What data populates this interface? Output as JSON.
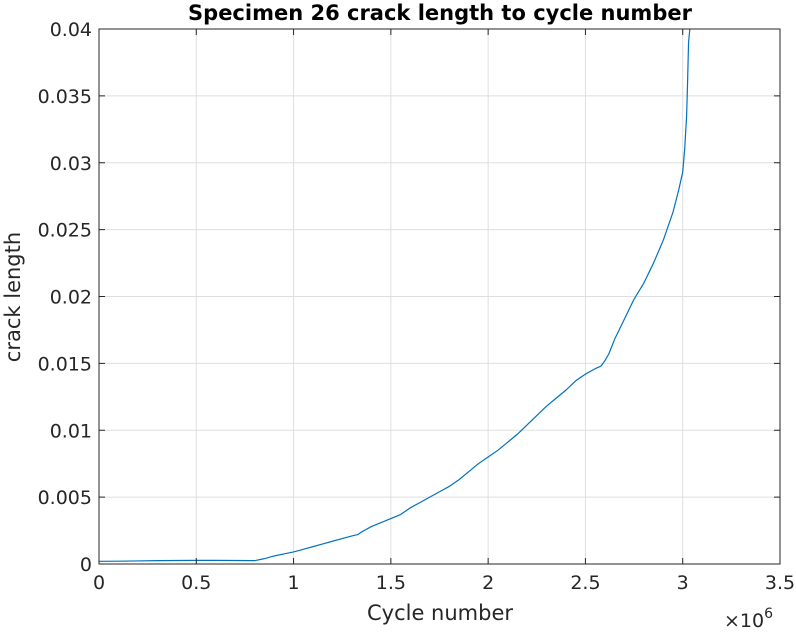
{
  "chart_data": {
    "type": "line",
    "title": "Specimen 26 crack length to cycle number",
    "xlabel": "Cycle number",
    "ylabel": "crack length",
    "x_multiplier_base": "×10",
    "x_multiplier_exponent": "6",
    "xlim": [
      0,
      3.5
    ],
    "ylim": [
      0,
      0.04
    ],
    "x_ticks": [
      {
        "value": 0,
        "label": "0"
      },
      {
        "value": 0.5,
        "label": "0.5"
      },
      {
        "value": 1,
        "label": "1"
      },
      {
        "value": 1.5,
        "label": "1.5"
      },
      {
        "value": 2,
        "label": "2"
      },
      {
        "value": 2.5,
        "label": "2.5"
      },
      {
        "value": 3,
        "label": "3"
      },
      {
        "value": 3.5,
        "label": "3.5"
      }
    ],
    "y_ticks": [
      {
        "value": 0,
        "label": "0"
      },
      {
        "value": 0.005,
        "label": "0.005"
      },
      {
        "value": 0.01,
        "label": "0.01"
      },
      {
        "value": 0.015,
        "label": "0.015"
      },
      {
        "value": 0.02,
        "label": "0.02"
      },
      {
        "value": 0.025,
        "label": "0.025"
      },
      {
        "value": 0.03,
        "label": "0.03"
      },
      {
        "value": 0.035,
        "label": "0.035"
      },
      {
        "value": 0.04,
        "label": "0.04"
      }
    ],
    "grid": true,
    "series": [
      {
        "color": "#0072BD",
        "x": [
          0,
          0.1,
          0.2,
          0.3,
          0.4,
          0.5,
          0.6,
          0.7,
          0.8,
          0.85,
          0.9,
          0.95,
          1.0,
          1.05,
          1.1,
          1.15,
          1.2,
          1.25,
          1.3,
          1.33,
          1.35,
          1.4,
          1.45,
          1.5,
          1.55,
          1.6,
          1.65,
          1.7,
          1.75,
          1.8,
          1.85,
          1.9,
          1.95,
          2.0,
          2.05,
          2.1,
          2.15,
          2.2,
          2.25,
          2.3,
          2.35,
          2.4,
          2.45,
          2.5,
          2.55,
          2.58,
          2.6,
          2.62,
          2.65,
          2.7,
          2.75,
          2.8,
          2.85,
          2.9,
          2.95,
          2.98,
          3.0,
          3.01,
          3.02,
          3.025,
          3.03,
          3.04
        ],
        "y": [
          0.0002,
          0.00021,
          0.00023,
          0.00025,
          0.00026,
          0.00027,
          0.00027,
          0.00026,
          0.00025,
          0.0004,
          0.0006,
          0.00075,
          0.0009,
          0.0011,
          0.0013,
          0.0015,
          0.0017,
          0.0019,
          0.0021,
          0.0022,
          0.0024,
          0.0028,
          0.0031,
          0.0034,
          0.0037,
          0.0042,
          0.0046,
          0.005,
          0.0054,
          0.0058,
          0.0063,
          0.0069,
          0.0075,
          0.008,
          0.0085,
          0.0091,
          0.0097,
          0.0104,
          0.0111,
          0.0118,
          0.0124,
          0.013,
          0.0137,
          0.0142,
          0.0146,
          0.0148,
          0.0152,
          0.0157,
          0.0168,
          0.0183,
          0.0198,
          0.021,
          0.0225,
          0.0242,
          0.0263,
          0.028,
          0.0293,
          0.031,
          0.0335,
          0.036,
          0.039,
          0.0405
        ]
      }
    ]
  }
}
